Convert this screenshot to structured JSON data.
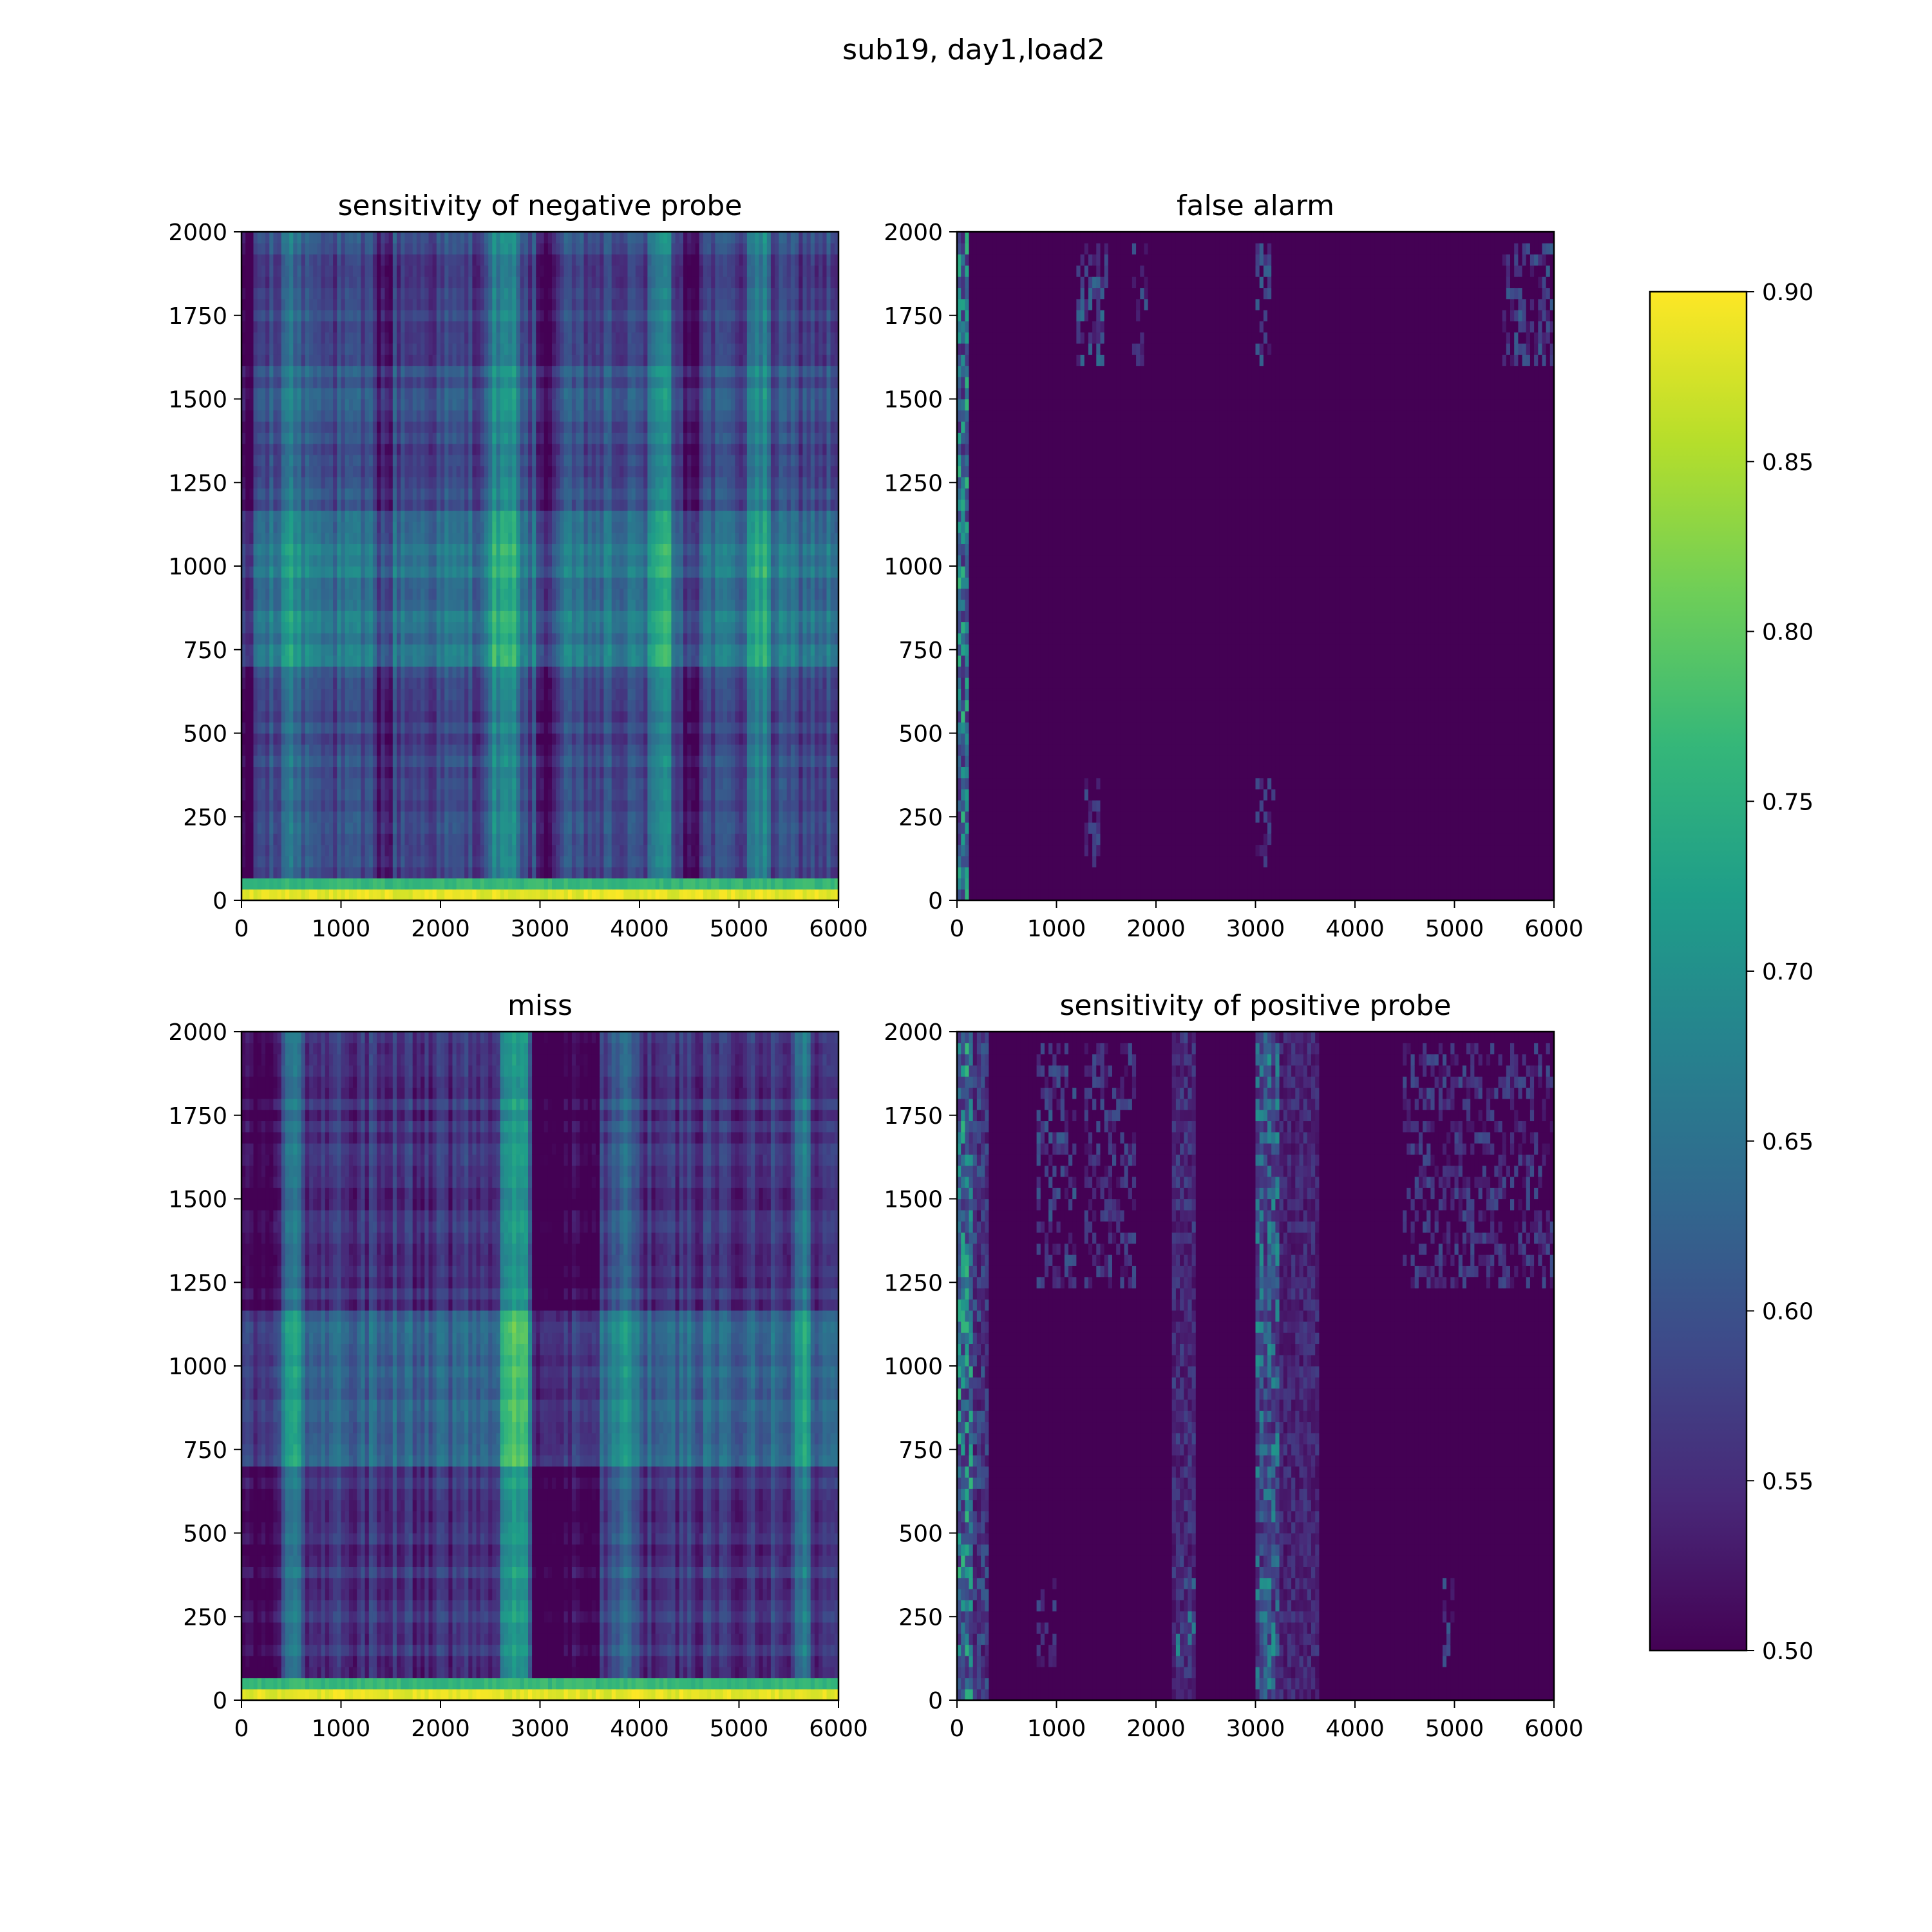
{
  "figure": {
    "title": "sub19, day1,load2"
  },
  "colors": {
    "viridis": [
      "#440154",
      "#482878",
      "#3e4989",
      "#31688e",
      "#26828e",
      "#1f9e89",
      "#35b779",
      "#6ece58",
      "#b5de2b",
      "#fde725"
    ],
    "axis": "#000000",
    "background": "#ffffff"
  },
  "chart_data": [
    {
      "type": "heatmap",
      "title": "sensitivity of negative probe",
      "xlim": [
        0,
        6000
      ],
      "ylim": [
        0,
        2000
      ],
      "xticks": [
        "0",
        "1000",
        "2000",
        "3000",
        "4000",
        "5000",
        "6000"
      ],
      "yticks": [
        "0",
        "250",
        "500",
        "750",
        "1000",
        "1250",
        "1500",
        "1750",
        "2000"
      ],
      "pattern": {
        "base": 0.58,
        "noise": 0.06,
        "x_bands": [
          [
            400,
            600,
            0.07
          ],
          [
            650,
            800,
            0.05
          ],
          [
            2500,
            2800,
            0.09
          ],
          [
            4100,
            4300,
            0.09
          ],
          [
            5100,
            5300,
            0.08
          ]
        ],
        "x_dark": [
          [
            0,
            120,
            0.1
          ],
          [
            1350,
            1500,
            0.05
          ],
          [
            2950,
            3150,
            0.06
          ],
          [
            4450,
            4600,
            0.06
          ]
        ],
        "y_bands": [
          [
            700,
            1180,
            0.07
          ],
          [
            1450,
            1600,
            0.02
          ]
        ],
        "bottom_band": [
          [
            0,
            40,
            0.9
          ],
          [
            40,
            80,
            0.78
          ]
        ]
      }
    },
    {
      "type": "heatmap",
      "title": "false alarm",
      "xlim": [
        0,
        6000
      ],
      "ylim": [
        0,
        2000
      ],
      "xticks": [
        "0",
        "1000",
        "2000",
        "3000",
        "4000",
        "5000",
        "6000"
      ],
      "yticks": [
        "0",
        "250",
        "500",
        "750",
        "1000",
        "1250",
        "1500",
        "1750",
        "2000"
      ],
      "pattern": {
        "base": 0.5,
        "noise": 0.0,
        "x_bands": [
          [
            0,
            120,
            0.18
          ]
        ],
        "sparse_regions": [
          [
            1200,
            1500,
            1600,
            1950,
            0.06
          ],
          [
            1750,
            1900,
            1600,
            1950,
            0.05
          ],
          [
            3000,
            3150,
            1600,
            1950,
            0.05
          ],
          [
            5500,
            6000,
            1600,
            1950,
            0.05
          ],
          [
            1300,
            1450,
            100,
            350,
            0.04
          ],
          [
            3000,
            3200,
            100,
            350,
            0.04
          ]
        ]
      }
    },
    {
      "type": "heatmap",
      "title": "miss",
      "xlim": [
        0,
        6000
      ],
      "ylim": [
        0,
        2000
      ],
      "xticks": [
        "0",
        "1000",
        "2000",
        "3000",
        "4000",
        "5000",
        "6000"
      ],
      "yticks": [
        "0",
        "250",
        "500",
        "750",
        "1000",
        "1250",
        "1500",
        "1750",
        "2000"
      ],
      "pattern": {
        "base": 0.56,
        "noise": 0.06,
        "x_bands": [
          [
            400,
            600,
            0.08
          ],
          [
            2600,
            2900,
            0.14
          ],
          [
            3700,
            4000,
            0.06
          ],
          [
            5550,
            5700,
            0.09
          ]
        ],
        "x_dark": [
          [
            0,
            350,
            0.07
          ],
          [
            2900,
            3600,
            0.07
          ],
          [
            6000,
            6000,
            0.0
          ]
        ],
        "y_bands": [
          [
            700,
            1180,
            0.07
          ]
        ],
        "bottom_band": [
          [
            0,
            40,
            0.9
          ],
          [
            40,
            80,
            0.78
          ]
        ]
      }
    },
    {
      "type": "heatmap",
      "title": "sensitivity of positive probe",
      "xlim": [
        0,
        6000
      ],
      "ylim": [
        0,
        2000
      ],
      "xticks": [
        "0",
        "1000",
        "2000",
        "3000",
        "4000",
        "5000",
        "6000"
      ],
      "yticks": [
        "0",
        "250",
        "500",
        "750",
        "1000",
        "1250",
        "1500",
        "1750",
        "2000"
      ],
      "pattern": {
        "base": 0.5,
        "noise": 0.0,
        "x_bands": [
          [
            0,
            150,
            0.18
          ],
          [
            150,
            320,
            0.08
          ],
          [
            3000,
            3250,
            0.14
          ],
          [
            3250,
            3650,
            0.05
          ],
          [
            2150,
            2400,
            0.06
          ]
        ],
        "sparse_regions": [
          [
            800,
            1200,
            1250,
            1950,
            0.05
          ],
          [
            1300,
            1800,
            1250,
            1950,
            0.04
          ],
          [
            4500,
            6000,
            1250,
            1950,
            0.04
          ],
          [
            800,
            1000,
            100,
            350,
            0.04
          ],
          [
            2200,
            2400,
            100,
            350,
            0.05
          ],
          [
            4900,
            5000,
            100,
            350,
            0.05
          ]
        ]
      }
    }
  ],
  "colorbar": {
    "vmin": 0.5,
    "vmax": 0.9,
    "ticks": [
      "0.50",
      "0.55",
      "0.60",
      "0.65",
      "0.70",
      "0.75",
      "0.80",
      "0.85",
      "0.90"
    ]
  }
}
